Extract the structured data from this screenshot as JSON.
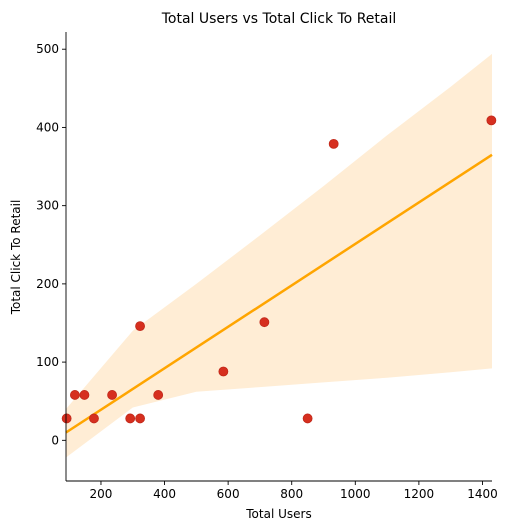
{
  "chart_data": {
    "type": "scatter",
    "title": "Total Users vs Total Click To Retail",
    "xlabel": "Total Users",
    "ylabel": "Total Click To Retail",
    "xlim": [
      90,
      1430
    ],
    "ylim": [
      -52,
      522
    ],
    "xticks": [
      200,
      400,
      600,
      800,
      1000,
      1200,
      1400
    ],
    "yticks": [
      0,
      100,
      200,
      300,
      400,
      500
    ],
    "grid": false,
    "points": [
      {
        "x": 92,
        "y": 28
      },
      {
        "x": 118,
        "y": 58
      },
      {
        "x": 148,
        "y": 58
      },
      {
        "x": 178,
        "y": 28
      },
      {
        "x": 235,
        "y": 58
      },
      {
        "x": 292,
        "y": 28
      },
      {
        "x": 323,
        "y": 28
      },
      {
        "x": 323,
        "y": 146
      },
      {
        "x": 380,
        "y": 58
      },
      {
        "x": 585,
        "y": 88
      },
      {
        "x": 714,
        "y": 151
      },
      {
        "x": 850,
        "y": 28
      },
      {
        "x": 932,
        "y": 379
      },
      {
        "x": 1428,
        "y": 409
      }
    ],
    "regression": {
      "x_start": 90,
      "y_start": 10,
      "x_end": 1430,
      "y_end": 365
    },
    "confidence_band": {
      "x": [
        90,
        300,
        500,
        700,
        900,
        1100,
        1300,
        1430
      ],
      "lower": [
        -22,
        42,
        62,
        68,
        74,
        80,
        87,
        92
      ],
      "upper": [
        40,
        140,
        200,
        262,
        325,
        390,
        452,
        494
      ]
    },
    "colors": {
      "points": "#d62f1f",
      "line": "#ffa500",
      "band": "#ffedd5"
    }
  }
}
